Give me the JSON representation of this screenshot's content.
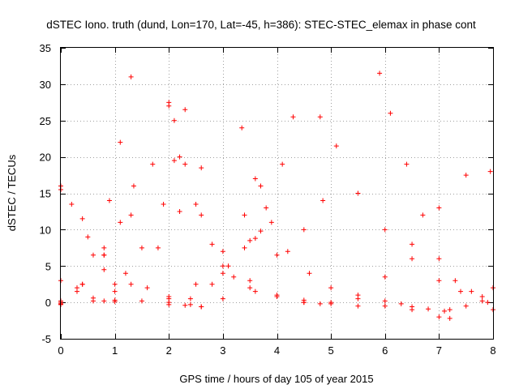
{
  "chart_data": {
    "type": "scatter",
    "title": "dSTEC Iono. truth (dund, Lon=170, Lat=-45, h=386): STEC-STEC_elemax in phase cont",
    "xlabel": "GPS time / hours of day 105 of year 2015",
    "ylabel": "dSTEC  / TECUs",
    "xlim": [
      0,
      8
    ],
    "ylim": [
      -5,
      35
    ],
    "xticks": [
      0,
      1,
      2,
      3,
      4,
      5,
      6,
      7,
      8
    ],
    "yticks": [
      -5,
      0,
      5,
      10,
      15,
      20,
      25,
      30,
      35
    ],
    "grid": true,
    "marker": "+",
    "color": "#ff0000",
    "series": [
      {
        "x": [
          0.0,
          0.3,
          0.6,
          0.9,
          1.1,
          1.3
        ],
        "y": [
          0.2,
          2.0,
          6.5,
          14.0,
          22.0,
          31.0
        ]
      },
      {
        "x": [
          0.0,
          0.4,
          0.8,
          1.1,
          1.35
        ],
        "y": [
          -0.2,
          2.5,
          6.5,
          11.0,
          16.0
        ]
      },
      {
        "x": [
          0.0,
          0.4,
          0.8,
          1.3,
          1.7,
          2.0
        ],
        "y": [
          0.0,
          2.5,
          6.5,
          12.0,
          19.0,
          27.0
        ]
      },
      {
        "x": [
          0.0,
          0.6,
          1.0,
          1.5,
          1.9,
          2.1,
          2.3
        ],
        "y": [
          -0.3,
          0.2,
          2.5,
          7.5,
          13.5,
          19.5,
          26.5
        ]
      },
      {
        "x": [
          0.0,
          0.8,
          1.3,
          1.8,
          2.2,
          2.6
        ],
        "y": [
          -0.2,
          0.2,
          2.5,
          7.5,
          12.5,
          18.5
        ]
      },
      {
        "x": [
          0.0,
          0.2,
          0.5,
          0.8,
          1.0
        ],
        "y": [
          16.0,
          13.5,
          9.0,
          4.5,
          1.5
        ]
      },
      {
        "x": [
          0.0,
          0.4,
          0.8,
          1.2,
          1.6,
          2.0,
          2.4,
          2.6
        ],
        "y": [
          15.5,
          11.5,
          7.5,
          4.0,
          2.0,
          0.8,
          -0.3,
          -0.6
        ]
      },
      {
        "x": [
          0.0,
          0.3,
          0.6,
          1.0
        ],
        "y": [
          3.0,
          1.5,
          0.6,
          0.1
        ]
      },
      {
        "x": [
          1.0,
          1.5,
          2.0,
          2.5,
          3.0,
          3.4,
          3.7
        ],
        "y": [
          0.3,
          0.2,
          0.5,
          2.5,
          7.0,
          12.0,
          16.0
        ]
      },
      {
        "x": [
          2.0,
          2.3,
          2.6,
          3.0,
          3.5,
          4.0,
          4.5,
          4.85
        ],
        "y": [
          0.0,
          -0.4,
          -0.6,
          0.5,
          3.0,
          6.5,
          10.0,
          14.0
        ]
      },
      {
        "x": [
          2.0,
          2.4,
          2.8,
          3.1,
          3.4,
          3.6,
          3.7
        ],
        "y": [
          -0.3,
          0.5,
          2.5,
          5.0,
          7.5,
          8.8,
          9.8
        ]
      },
      {
        "x": [
          3.0,
          3.5,
          3.8,
          4.1,
          4.3
        ],
        "y": [
          4.0,
          8.5,
          13.0,
          19.0,
          25.5
        ]
      },
      {
        "x": [
          2.0,
          2.2,
          2.5,
          2.8,
          3.2,
          3.6,
          4.0,
          4.5,
          4.8
        ],
        "y": [
          27.5,
          20.0,
          13.5,
          8.0,
          3.5,
          1.5,
          0.8,
          0.0,
          -0.2
        ]
      },
      {
        "x": [
          2.1,
          2.3,
          2.6,
          3.0,
          3.5,
          4.0,
          4.5,
          5.0,
          5.5,
          6.0,
          6.5,
          7.0,
          7.2
        ],
        "y": [
          25.0,
          19.0,
          12.0,
          5.0,
          2.0,
          1.0,
          0.3,
          0.0,
          -0.5,
          -0.5,
          -1.0,
          -2.0,
          -2.2
        ]
      },
      {
        "x": [
          3.35,
          3.6,
          3.9,
          4.2,
          4.6,
          5.0,
          5.5,
          6.0,
          6.3,
          6.5,
          6.8,
          7.1
        ],
        "y": [
          24.0,
          17.0,
          11.0,
          7.0,
          4.0,
          2.0,
          1.0,
          0.2,
          -0.2,
          -0.6,
          -0.9,
          -1.2
        ]
      },
      {
        "x": [
          4.8,
          5.1,
          5.5,
          6.0,
          6.5,
          7.0,
          7.4,
          7.8,
          8.0
        ],
        "y": [
          25.5,
          21.5,
          15.0,
          10.0,
          6.0,
          3.0,
          1.5,
          0.2,
          -1.0
        ]
      },
      {
        "x": [
          4.5,
          5.0,
          5.5,
          6.0,
          6.5,
          7.0,
          7.5,
          7.95
        ],
        "y": [
          0.0,
          -0.2,
          0.5,
          3.5,
          8.0,
          13.0,
          17.5,
          18.0
        ]
      },
      {
        "x": [
          5.9,
          6.1,
          6.4,
          6.7,
          7.0,
          7.3,
          7.6,
          7.9
        ],
        "y": [
          31.5,
          26.0,
          19.0,
          12.0,
          6.0,
          3.0,
          1.5,
          0.0
        ]
      },
      {
        "x": [
          7.2,
          7.5,
          7.8,
          8.0
        ],
        "y": [
          -1.0,
          -0.5,
          0.8,
          2.0
        ]
      }
    ]
  }
}
